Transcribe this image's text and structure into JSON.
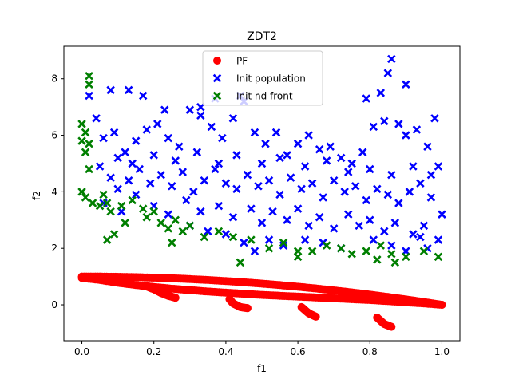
{
  "colors": {
    "pf": "#ff0000",
    "init_population": "#0000ff",
    "init_nd_front": "#007f00"
  },
  "chart_data": {
    "type": "scatter",
    "title": "ZDT2",
    "xlabel": "f1",
    "ylabel": "f2",
    "xlim": [
      -0.05,
      1.05
    ],
    "ylim": [
      -1.27,
      9.15
    ],
    "xticks": [
      0.0,
      0.2,
      0.4,
      0.6,
      0.8,
      1.0
    ],
    "xtick_labels": [
      "0.0",
      "0.2",
      "0.4",
      "0.6",
      "0.8",
      "1.0"
    ],
    "yticks": [
      0,
      2,
      4,
      6,
      8
    ],
    "ytick_labels": [
      "0",
      "2",
      "4",
      "6",
      "8"
    ],
    "grid": false,
    "legend": {
      "position": "top-center",
      "entries": [
        "PF",
        "Init population",
        "Init nd front"
      ]
    },
    "series": [
      {
        "name": "PF",
        "marker": "circle",
        "color": "#ff0000",
        "curves": [
          [
            [
              0.0,
              1.0
            ],
            [
              0.05,
              0.998
            ],
            [
              0.1,
              0.99
            ],
            [
              0.15,
              0.978
            ],
            [
              0.2,
              0.96
            ],
            [
              0.25,
              0.938
            ],
            [
              0.3,
              0.91
            ],
            [
              0.35,
              0.878
            ],
            [
              0.4,
              0.84
            ],
            [
              0.45,
              0.798
            ],
            [
              0.5,
              0.75
            ],
            [
              0.55,
              0.698
            ],
            [
              0.6,
              0.64
            ],
            [
              0.65,
              0.578
            ],
            [
              0.7,
              0.51
            ],
            [
              0.75,
              0.438
            ],
            [
              0.8,
              0.36
            ],
            [
              0.85,
              0.278
            ],
            [
              0.9,
              0.19
            ],
            [
              0.95,
              0.098
            ],
            [
              1.0,
              0.0
            ]
          ],
          [
            [
              0.0,
              0.95
            ],
            [
              0.05,
              0.88
            ],
            [
              0.1,
              0.78
            ],
            [
              0.15,
              0.7
            ],
            [
              0.2,
              0.63
            ],
            [
              0.25,
              0.57
            ],
            [
              0.3,
              0.52
            ],
            [
              0.35,
              0.47
            ],
            [
              0.4,
              0.43
            ],
            [
              0.45,
              0.39
            ],
            [
              0.5,
              0.35
            ],
            [
              0.55,
              0.32
            ],
            [
              0.6,
              0.29
            ],
            [
              0.65,
              0.26
            ],
            [
              0.7,
              0.23
            ],
            [
              0.75,
              0.2
            ],
            [
              0.8,
              0.17
            ],
            [
              0.85,
              0.13
            ],
            [
              0.9,
              0.09
            ],
            [
              0.95,
              0.05
            ],
            [
              1.0,
              0.0
            ]
          ],
          [
            [
              0.18,
              0.65
            ],
            [
              0.2,
              0.55
            ],
            [
              0.22,
              0.42
            ],
            [
              0.24,
              0.32
            ],
            [
              0.26,
              0.25
            ]
          ],
          [
            [
              0.41,
              0.2
            ],
            [
              0.42,
              0.05
            ],
            [
              0.44,
              -0.08
            ],
            [
              0.46,
              -0.12
            ]
          ],
          [
            [
              0.61,
              -0.08
            ],
            [
              0.63,
              -0.3
            ],
            [
              0.65,
              -0.42
            ]
          ],
          [
            [
              0.82,
              -0.45
            ],
            [
              0.84,
              -0.68
            ],
            [
              0.86,
              -0.78
            ]
          ]
        ]
      },
      {
        "name": "Init population",
        "marker": "x",
        "color": "#0000ff",
        "points": [
          [
            0.02,
            7.4
          ],
          [
            0.04,
            6.6
          ],
          [
            0.06,
            5.9
          ],
          [
            0.09,
            6.1
          ],
          [
            0.12,
            5.4
          ],
          [
            0.15,
            5.8
          ],
          [
            0.18,
            6.2
          ],
          [
            0.21,
            6.4
          ],
          [
            0.24,
            5.9
          ],
          [
            0.27,
            5.6
          ],
          [
            0.3,
            6.9
          ],
          [
            0.33,
            6.7
          ],
          [
            0.36,
            6.3
          ],
          [
            0.39,
            5.9
          ],
          [
            0.42,
            6.6
          ],
          [
            0.45,
            7.2
          ],
          [
            0.48,
            6.1
          ],
          [
            0.51,
            5.7
          ],
          [
            0.54,
            6.1
          ],
          [
            0.57,
            5.3
          ],
          [
            0.6,
            5.7
          ],
          [
            0.63,
            6.0
          ],
          [
            0.66,
            5.5
          ],
          [
            0.69,
            5.6
          ],
          [
            0.72,
            5.2
          ],
          [
            0.75,
            5.0
          ],
          [
            0.78,
            5.4
          ],
          [
            0.81,
            6.3
          ],
          [
            0.84,
            6.5
          ],
          [
            0.86,
            8.7
          ],
          [
            0.88,
            6.4
          ],
          [
            0.9,
            6.0
          ],
          [
            0.93,
            6.2
          ],
          [
            0.96,
            5.6
          ],
          [
            0.99,
            4.9
          ],
          [
            0.08,
            7.6
          ],
          [
            0.13,
            7.6
          ],
          [
            0.17,
            7.4
          ],
          [
            0.23,
            6.9
          ],
          [
            0.33,
            7.0
          ],
          [
            0.37,
            7.3
          ],
          [
            0.44,
            7.4
          ],
          [
            0.79,
            7.3
          ],
          [
            0.83,
            7.5
          ],
          [
            0.85,
            8.2
          ],
          [
            0.9,
            7.8
          ],
          [
            0.98,
            6.6
          ],
          [
            0.05,
            4.9
          ],
          [
            0.08,
            4.5
          ],
          [
            0.1,
            4.1
          ],
          [
            0.13,
            4.4
          ],
          [
            0.16,
            4.8
          ],
          [
            0.19,
            4.3
          ],
          [
            0.22,
            4.6
          ],
          [
            0.25,
            4.2
          ],
          [
            0.28,
            4.7
          ],
          [
            0.31,
            4.0
          ],
          [
            0.34,
            4.4
          ],
          [
            0.37,
            4.8
          ],
          [
            0.4,
            4.3
          ],
          [
            0.43,
            4.1
          ],
          [
            0.46,
            4.6
          ],
          [
            0.49,
            4.2
          ],
          [
            0.52,
            4.4
          ],
          [
            0.55,
            3.9
          ],
          [
            0.58,
            4.5
          ],
          [
            0.61,
            4.1
          ],
          [
            0.64,
            4.3
          ],
          [
            0.67,
            3.8
          ],
          [
            0.7,
            4.4
          ],
          [
            0.73,
            4.0
          ],
          [
            0.76,
            4.2
          ],
          [
            0.79,
            3.7
          ],
          [
            0.82,
            4.1
          ],
          [
            0.85,
            3.9
          ],
          [
            0.88,
            3.6
          ],
          [
            0.91,
            4.0
          ],
          [
            0.94,
            4.3
          ],
          [
            0.97,
            3.8
          ],
          [
            1.0,
            3.2
          ],
          [
            0.06,
            3.6
          ],
          [
            0.11,
            3.3
          ],
          [
            0.15,
            3.9
          ],
          [
            0.2,
            3.5
          ],
          [
            0.24,
            3.2
          ],
          [
            0.29,
            3.7
          ],
          [
            0.33,
            3.3
          ],
          [
            0.38,
            3.5
          ],
          [
            0.42,
            3.1
          ],
          [
            0.47,
            3.4
          ],
          [
            0.5,
            2.9
          ],
          [
            0.53,
            3.3
          ],
          [
            0.57,
            3.0
          ],
          [
            0.6,
            3.4
          ],
          [
            0.63,
            2.8
          ],
          [
            0.66,
            3.1
          ],
          [
            0.7,
            2.7
          ],
          [
            0.74,
            3.2
          ],
          [
            0.77,
            2.8
          ],
          [
            0.8,
            3.0
          ],
          [
            0.84,
            2.6
          ],
          [
            0.87,
            2.9
          ],
          [
            0.92,
            2.5
          ],
          [
            0.95,
            2.8
          ],
          [
            0.99,
            2.3
          ],
          [
            0.1,
            5.2
          ],
          [
            0.14,
            5.0
          ],
          [
            0.2,
            5.3
          ],
          [
            0.26,
            5.1
          ],
          [
            0.32,
            5.4
          ],
          [
            0.38,
            5.0
          ],
          [
            0.43,
            5.3
          ],
          [
            0.5,
            5.0
          ],
          [
            0.55,
            5.2
          ],
          [
            0.62,
            4.9
          ],
          [
            0.68,
            5.1
          ],
          [
            0.74,
            4.7
          ],
          [
            0.8,
            4.8
          ],
          [
            0.86,
            4.6
          ],
          [
            0.92,
            4.9
          ],
          [
            0.97,
            4.6
          ],
          [
            0.45,
            2.2
          ],
          [
            0.48,
            1.9
          ],
          [
            0.52,
            2.3
          ],
          [
            0.56,
            2.1
          ],
          [
            0.62,
            2.3
          ],
          [
            0.67,
            2.2
          ],
          [
            0.72,
            2.0
          ],
          [
            0.81,
            2.3
          ],
          [
            0.86,
            2.1
          ],
          [
            0.9,
            1.9
          ],
          [
            0.94,
            2.4
          ],
          [
            0.96,
            2.0
          ],
          [
            0.35,
            2.6
          ],
          [
            0.3,
            2.8
          ],
          [
            0.4,
            2.5
          ]
        ]
      },
      {
        "name": "Init nd front",
        "marker": "x",
        "color": "#007f00",
        "points": [
          [
            0.02,
            8.1
          ],
          [
            0.02,
            7.8
          ],
          [
            0.0,
            6.4
          ],
          [
            0.01,
            6.1
          ],
          [
            0.0,
            5.8
          ],
          [
            0.02,
            5.7
          ],
          [
            0.01,
            5.4
          ],
          [
            0.02,
            4.8
          ],
          [
            0.0,
            4.0
          ],
          [
            0.01,
            3.8
          ],
          [
            0.03,
            3.6
          ],
          [
            0.05,
            3.5
          ],
          [
            0.06,
            3.9
          ],
          [
            0.07,
            3.6
          ],
          [
            0.08,
            3.3
          ],
          [
            0.11,
            3.5
          ],
          [
            0.14,
            3.7
          ],
          [
            0.17,
            3.4
          ],
          [
            0.18,
            3.1
          ],
          [
            0.2,
            3.3
          ],
          [
            0.22,
            2.9
          ],
          [
            0.24,
            2.7
          ],
          [
            0.26,
            3.0
          ],
          [
            0.28,
            2.6
          ],
          [
            0.3,
            2.8
          ],
          [
            0.34,
            2.4
          ],
          [
            0.38,
            2.6
          ],
          [
            0.42,
            2.4
          ],
          [
            0.47,
            2.3
          ],
          [
            0.52,
            2.0
          ],
          [
            0.56,
            2.2
          ],
          [
            0.6,
            1.9
          ],
          [
            0.6,
            1.7
          ],
          [
            0.64,
            1.9
          ],
          [
            0.68,
            2.1
          ],
          [
            0.72,
            2.0
          ],
          [
            0.75,
            1.8
          ],
          [
            0.79,
            1.9
          ],
          [
            0.82,
            1.6
          ],
          [
            0.83,
            2.1
          ],
          [
            0.86,
            1.8
          ],
          [
            0.87,
            1.5
          ],
          [
            0.9,
            1.7
          ],
          [
            0.95,
            1.9
          ],
          [
            0.99,
            1.7
          ],
          [
            0.44,
            1.5
          ],
          [
            0.07,
            2.3
          ],
          [
            0.09,
            2.5
          ],
          [
            0.12,
            2.9
          ],
          [
            0.25,
            2.2
          ]
        ]
      }
    ]
  }
}
